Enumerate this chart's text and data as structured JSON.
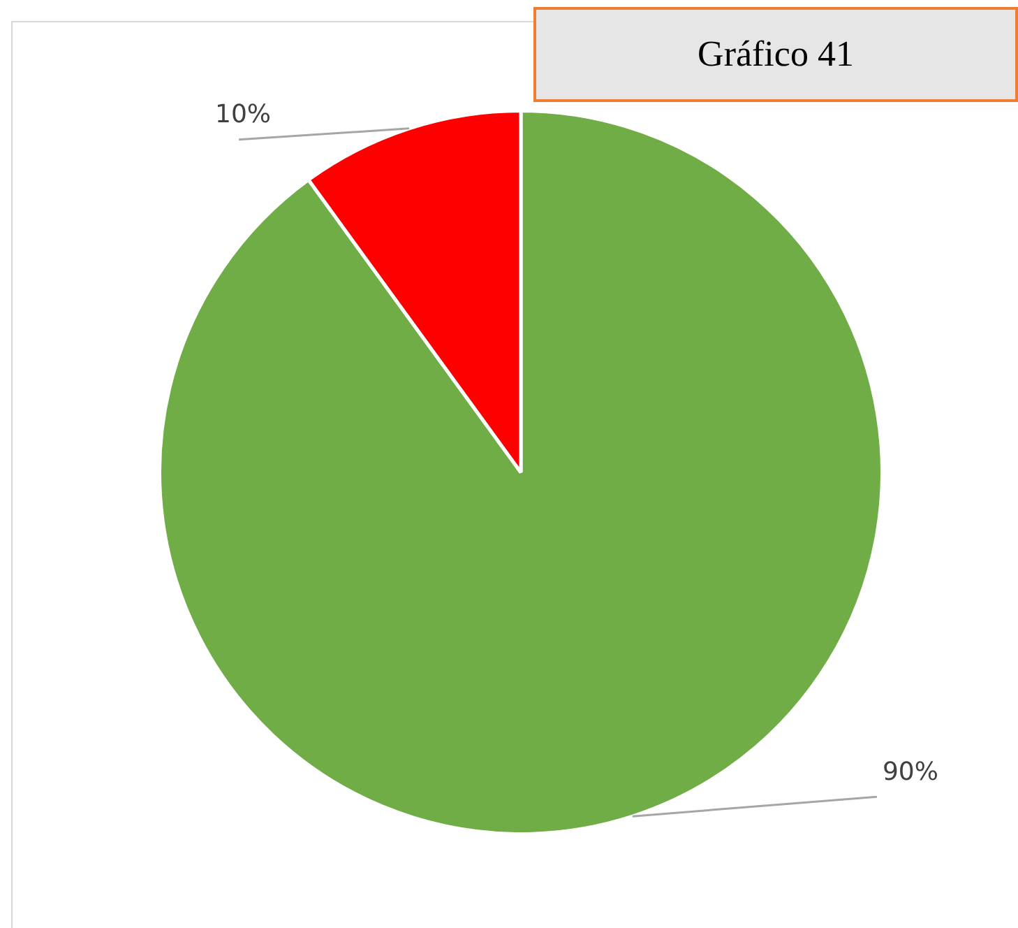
{
  "chart_data": {
    "type": "pie",
    "title": "Gráfico 41",
    "categories": [
      null,
      null
    ],
    "values": [
      90,
      10
    ],
    "colors": [
      "#70ad47",
      "#ff0000"
    ],
    "value_labels": [
      "90%",
      "10%"
    ],
    "legend": false
  }
}
